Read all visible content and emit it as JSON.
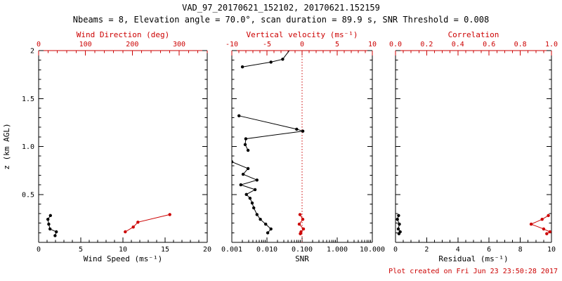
{
  "colors": {
    "black": "#000000",
    "red": "#cc0000",
    "background": "#ffffff"
  },
  "chart_data": {
    "type": "line",
    "title": "VAD_97_20170621_152102, 20170621.152159",
    "subtitle": "Nbeams = 8, Elevation angle = 70.0°, scan duration = 89.9 s, SNR Threshold = 0.008",
    "footnote": "Plot created on Fri Jun 23 23:50:28 2017",
    "ylabel": "z (km AGL)",
    "ylim": [
      0,
      2
    ],
    "yticks": [
      0,
      0.5,
      1.0,
      1.5,
      2.0
    ],
    "ytick_labels": [
      "",
      "0.5",
      "1.0",
      "1.5",
      "2"
    ],
    "yminor_step": 0.1,
    "panels": [
      {
        "name": "wind-panel",
        "show_ylabels": true,
        "x_bottom": {
          "label": "Wind Speed (ms⁻¹)",
          "min": 0,
          "max": 20,
          "scale": "linear",
          "ticks": [
            0,
            5,
            10,
            15,
            20
          ],
          "tick_labels": [
            "0",
            "5",
            "10",
            "15",
            "20"
          ],
          "minor_step": 1
        },
        "x_top": {
          "label": "Wind Direction (deg)",
          "min": 0,
          "max": 360,
          "scale": "linear",
          "ticks": [
            0,
            100,
            200,
            300
          ],
          "tick_labels": [
            "0",
            "100",
            "200",
            "300"
          ],
          "minor_step": 20
        },
        "series": [
          {
            "name": "wind-speed",
            "axis": "bottom",
            "color": "black",
            "segments": [
              {
                "x": [
                  1.4,
                  1.1,
                  1.2,
                  1.35,
                  2.1,
                  1.95
                ],
                "z": [
                  0.28,
                  0.24,
                  0.19,
                  0.14,
                  0.11,
                  0.07
                ]
              }
            ]
          },
          {
            "name": "wind-direction",
            "axis": "top",
            "color": "red",
            "segments": [
              {
                "x": [
                  280,
                  212,
                  202,
                  185
                ],
                "z": [
                  0.29,
                  0.21,
                  0.16,
                  0.11
                ]
              }
            ]
          }
        ]
      },
      {
        "name": "snr-panel",
        "show_ylabels": false,
        "x_bottom": {
          "label": "SNR",
          "min": 0.001,
          "max": 10,
          "scale": "log",
          "ticks": [
            0.001,
            0.01,
            0.1,
            1,
            10
          ],
          "tick_labels": [
            "0.001",
            "0.010",
            "0.100",
            "1.000",
            "10.000"
          ]
        },
        "x_top": {
          "label": "Vertical velocity (ms⁻¹)",
          "min": -10,
          "max": 10,
          "scale": "linear",
          "ticks": [
            -10,
            -5,
            0,
            5,
            10
          ],
          "tick_labels": [
            "-10",
            "-5",
            "0",
            "5",
            "10"
          ],
          "minor_step": 1
        },
        "refline": {
          "axis": "top",
          "value": 0,
          "color": "red",
          "style": "dotted"
        },
        "series": [
          {
            "name": "snr-profile",
            "axis": "bottom",
            "color": "black",
            "segments": [
              {
                "x": [
                  0.002,
                  0.013,
                  0.028,
                  0.05
                ],
                "z": [
                  1.83,
                  1.88,
                  1.91,
                  2.03
                ]
              },
              {
                "x": [
                  0.0016,
                  0.07,
                  0.105,
                  0.0025,
                  0.0024,
                  0.0029
                ],
                "z": [
                  1.32,
                  1.18,
                  1.16,
                  1.08,
                  1.02,
                  0.96
                ]
              },
              {
                "x": [
                  0.001,
                  0.0029,
                  0.0021,
                  0.0052,
                  0.0018,
                  0.0046,
                  0.0026,
                  0.0033,
                  0.0038,
                  0.0042,
                  0.0052,
                  0.0065,
                  0.0092,
                  0.013,
                  0.0105
                ],
                "z": [
                  0.84,
                  0.77,
                  0.71,
                  0.65,
                  0.6,
                  0.55,
                  0.5,
                  0.46,
                  0.41,
                  0.36,
                  0.29,
                  0.24,
                  0.19,
                  0.14,
                  0.1
                ]
              }
            ]
          },
          {
            "name": "vertical-velocity",
            "axis": "top",
            "color": "red",
            "segments": [
              {
                "x": [
                  -0.3,
                  0.1,
                  -0.4,
                  0.2,
                  -0.15,
                  -0.25
                ],
                "z": [
                  0.29,
                  0.24,
                  0.19,
                  0.14,
                  0.11,
                  0.09
                ]
              }
            ]
          }
        ]
      },
      {
        "name": "residual-panel",
        "show_ylabels": false,
        "x_bottom": {
          "label": "Residual (ms⁻¹)",
          "min": 0,
          "max": 10,
          "scale": "linear",
          "ticks": [
            0,
            2,
            4,
            6,
            8,
            10
          ],
          "tick_labels": [
            "0",
            "2",
            "4",
            "6",
            "8",
            "10"
          ],
          "minor_step": 0.5
        },
        "x_top": {
          "label": "Correlation",
          "min": 0,
          "max": 1,
          "scale": "linear",
          "ticks": [
            0,
            0.2,
            0.4,
            0.6,
            0.8,
            1.0
          ],
          "tick_labels": [
            "0.0",
            "0.2",
            "0.4",
            "0.6",
            "0.8",
            "1.0"
          ],
          "minor_step": 0.05
        },
        "series": [
          {
            "name": "residual",
            "axis": "bottom",
            "color": "black",
            "segments": [
              {
                "x": [
                  0.2,
                  0.12,
                  0.25,
                  0.18,
                  0.3,
                  0.22
                ],
                "z": [
                  0.28,
                  0.24,
                  0.19,
                  0.14,
                  0.11,
                  0.09
                ]
              }
            ]
          },
          {
            "name": "correlation",
            "axis": "top",
            "color": "red",
            "segments": [
              {
                "x": [
                  0.98,
                  0.94,
                  0.87,
                  0.95,
                  0.99,
                  0.97
                ],
                "z": [
                  0.28,
                  0.24,
                  0.19,
                  0.14,
                  0.11,
                  0.09
                ]
              }
            ]
          }
        ]
      }
    ]
  }
}
